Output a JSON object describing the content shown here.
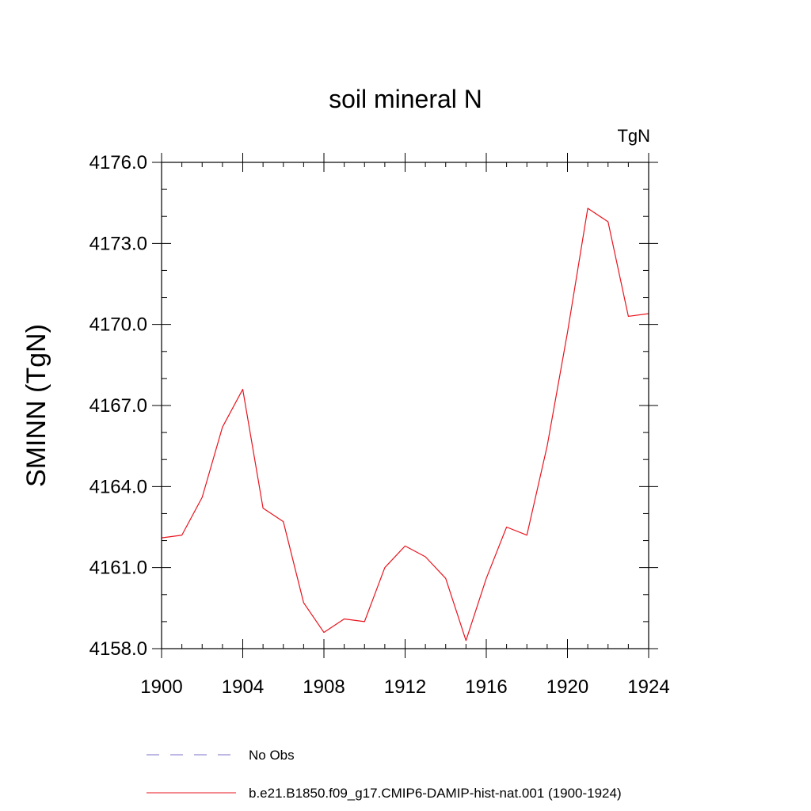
{
  "chart_data": {
    "type": "line",
    "title": "soil mineral N",
    "units": "TgN",
    "xlabel": "",
    "ylabel": "SMINN  (TgN)",
    "xlim": [
      1900,
      1924
    ],
    "ylim": [
      4158.0,
      4176.0
    ],
    "x_ticks": [
      1900,
      1904,
      1908,
      1912,
      1916,
      1920,
      1924
    ],
    "x_tick_labels": [
      "1900",
      "1904",
      "1908",
      "1912",
      "1916",
      "1920",
      "1924"
    ],
    "y_ticks": [
      4158.0,
      4161.0,
      4164.0,
      4167.0,
      4170.0,
      4173.0,
      4176.0
    ],
    "y_tick_labels": [
      "4158.0",
      "4161.0",
      "4164.0",
      "4167.0",
      "4170.0",
      "4173.0",
      "4176.0"
    ],
    "grid": false,
    "legend_placement": "bottom",
    "series": [
      {
        "name": "No Obs",
        "color": "#7b72c9",
        "style": "dashed",
        "x": [],
        "values": []
      },
      {
        "name": "b.e21.B1850.f09_g17.CMIP6-DAMIP-hist-nat.001 (1900-1924)",
        "color": "#e8141e",
        "style": "solid",
        "x": [
          1900,
          1901,
          1902,
          1903,
          1904,
          1905,
          1906,
          1907,
          1908,
          1909,
          1910,
          1911,
          1912,
          1913,
          1914,
          1915,
          1916,
          1917,
          1918,
          1919,
          1920,
          1921,
          1922,
          1923,
          1924
        ],
        "values": [
          4162.1,
          4162.2,
          4163.6,
          4166.2,
          4167.6,
          4163.2,
          4162.7,
          4159.7,
          4158.6,
          4159.1,
          4159.0,
          4161.0,
          4161.8,
          4161.4,
          4160.6,
          4158.3,
          4160.6,
          4162.5,
          4162.2,
          4165.5,
          4169.7,
          4174.3,
          4173.8,
          4170.3,
          4170.4
        ]
      }
    ]
  }
}
